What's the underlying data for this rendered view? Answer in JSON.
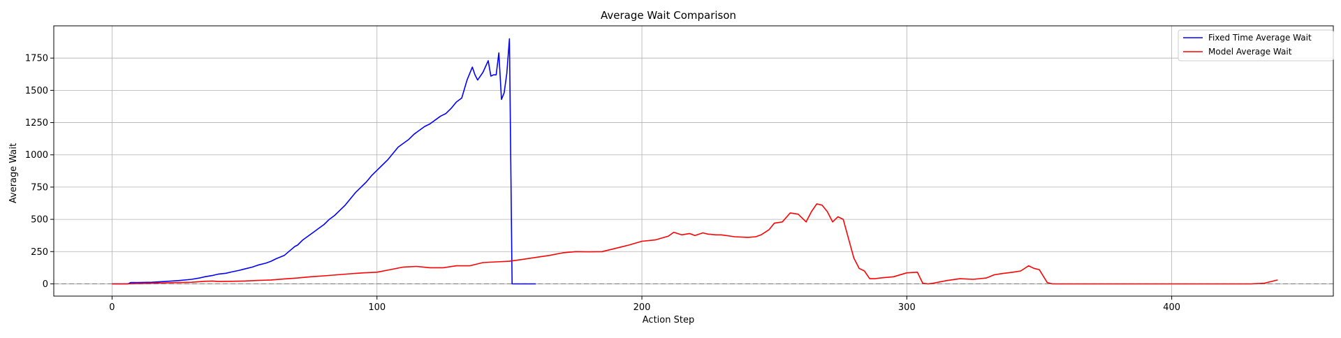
{
  "chart_data": {
    "type": "line",
    "title": "Average Wait Comparison",
    "xlabel": "Action Step",
    "ylabel": "Average Wait",
    "xlim": [
      -22,
      461
    ],
    "ylim": [
      -95,
      2000
    ],
    "xticks": [
      0,
      100,
      200,
      300,
      400
    ],
    "yticks": [
      0,
      250,
      500,
      750,
      1000,
      1250,
      1500,
      1750
    ],
    "grid": true,
    "legend_position": "top-right",
    "reference_line": {
      "y": 0,
      "style": "dashed",
      "color": "#808080"
    },
    "series": [
      {
        "name": "Fixed Time Average Wait",
        "color": "#0000ff",
        "x": [
          0,
          6,
          7,
          10,
          15,
          20,
          25,
          30,
          33,
          35,
          38,
          40,
          43,
          45,
          48,
          50,
          53,
          55,
          58,
          60,
          62,
          65,
          67,
          69,
          70,
          72,
          74,
          76,
          78,
          80,
          82,
          84,
          86,
          88,
          90,
          92,
          94,
          96,
          98,
          100,
          102,
          104,
          106,
          108,
          110,
          112,
          114,
          116,
          118,
          120,
          122,
          124,
          126,
          128,
          130,
          132,
          134,
          136,
          137,
          138,
          140,
          142,
          143,
          144,
          145,
          146,
          147,
          148,
          149,
          150,
          151,
          152,
          153,
          155,
          160
        ],
        "y": [
          0,
          0,
          10,
          10,
          12,
          18,
          25,
          35,
          45,
          55,
          65,
          75,
          82,
          92,
          105,
          115,
          130,
          145,
          160,
          175,
          195,
          220,
          255,
          290,
          300,
          340,
          370,
          400,
          430,
          460,
          500,
          530,
          570,
          610,
          660,
          710,
          750,
          790,
          840,
          880,
          920,
          960,
          1010,
          1060,
          1090,
          1120,
          1160,
          1190,
          1220,
          1240,
          1270,
          1300,
          1320,
          1360,
          1410,
          1440,
          1580,
          1680,
          1620,
          1580,
          1640,
          1730,
          1610,
          1620,
          1620,
          1790,
          1430,
          1480,
          1630,
          1900,
          0,
          0,
          0,
          0,
          0
        ]
      },
      {
        "name": "Model Average Wait",
        "color": "#ff0000",
        "x": [
          0,
          5,
          10,
          15,
          20,
          25,
          30,
          35,
          38,
          40,
          45,
          50,
          55,
          60,
          65,
          70,
          75,
          80,
          85,
          90,
          95,
          100,
          105,
          110,
          115,
          120,
          125,
          130,
          135,
          140,
          145,
          150,
          155,
          160,
          165,
          170,
          175,
          180,
          185,
          190,
          195,
          200,
          205,
          210,
          212,
          215,
          218,
          220,
          223,
          225,
          228,
          230,
          235,
          240,
          243,
          245,
          248,
          250,
          253,
          256,
          259,
          262,
          264,
          266,
          268,
          270,
          272,
          274,
          276,
          278,
          280,
          282,
          284,
          286,
          288,
          290,
          295,
          300,
          304,
          306,
          308,
          310,
          315,
          320,
          325,
          330,
          333,
          336,
          340,
          343,
          346,
          348,
          350,
          353,
          355,
          360,
          370,
          380,
          390,
          400,
          410,
          420,
          430,
          435,
          440
        ],
        "y": [
          0,
          0,
          3,
          5,
          8,
          10,
          12,
          20,
          22,
          18,
          20,
          22,
          26,
          30,
          38,
          45,
          55,
          62,
          70,
          78,
          85,
          90,
          110,
          130,
          135,
          125,
          125,
          140,
          140,
          165,
          170,
          175,
          190,
          205,
          220,
          240,
          250,
          248,
          250,
          275,
          300,
          330,
          340,
          370,
          400,
          380,
          390,
          375,
          395,
          385,
          380,
          380,
          365,
          360,
          365,
          380,
          420,
          470,
          480,
          550,
          540,
          480,
          560,
          620,
          610,
          560,
          480,
          520,
          500,
          350,
          200,
          120,
          100,
          40,
          40,
          45,
          55,
          85,
          90,
          5,
          0,
          5,
          25,
          40,
          35,
          45,
          70,
          80,
          90,
          100,
          140,
          120,
          110,
          10,
          0,
          0,
          0,
          0,
          0,
          0,
          0,
          0,
          0,
          5,
          30
        ]
      }
    ]
  }
}
